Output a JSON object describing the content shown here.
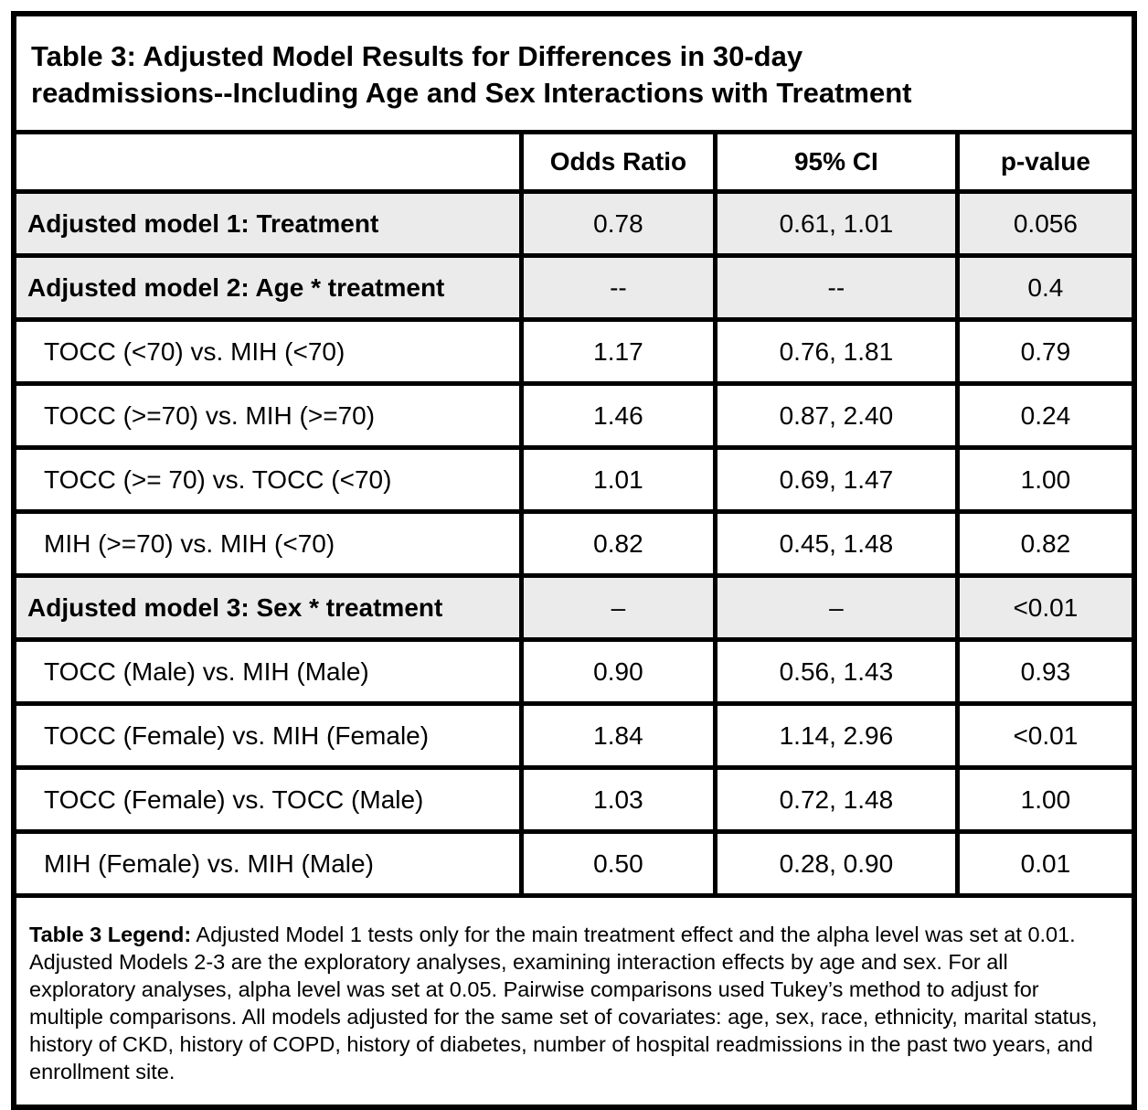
{
  "table": {
    "title": "Table 3: Adjusted Model Results for Differences in 30-day\nreadmissions--Including Age and Sex Interactions with Treatment",
    "columns": [
      "",
      "Odds Ratio",
      "95% CI",
      "p-value"
    ],
    "rows": [
      {
        "label": "Adjusted model 1: Treatment",
        "odds_ratio": "0.78",
        "ci": "0.61, 1.01",
        "p": "0.056",
        "type": "model"
      },
      {
        "label": "Adjusted model 2: Age * treatment",
        "odds_ratio": "--",
        "ci": "--",
        "p": "0.4",
        "type": "model"
      },
      {
        "label": "TOCC (<70) vs. MIH (<70)",
        "odds_ratio": "1.17",
        "ci": "0.76, 1.81",
        "p": "0.79",
        "type": "pairwise"
      },
      {
        "label": "TOCC (>=70) vs. MIH (>=70)",
        "odds_ratio": "1.46",
        "ci": "0.87, 2.40",
        "p": "0.24",
        "type": "pairwise"
      },
      {
        "label": "TOCC (>= 70) vs. TOCC (<70)",
        "odds_ratio": "1.01",
        "ci": "0.69, 1.47",
        "p": "1.00",
        "type": "pairwise"
      },
      {
        "label": "MIH (>=70) vs. MIH (<70)",
        "odds_ratio": "0.82",
        "ci": "0.45, 1.48",
        "p": "0.82",
        "type": "pairwise"
      },
      {
        "label": "Adjusted model 3: Sex * treatment",
        "odds_ratio": "–",
        "ci": "–",
        "p": "<0.01",
        "type": "model"
      },
      {
        "label": "TOCC (Male) vs. MIH (Male)",
        "odds_ratio": "0.90",
        "ci": "0.56, 1.43",
        "p": "0.93",
        "type": "pairwise"
      },
      {
        "label": "TOCC (Female) vs. MIH (Female)",
        "odds_ratio": "1.84",
        "ci": "1.14, 2.96",
        "p": "<0.01",
        "type": "pairwise"
      },
      {
        "label": "TOCC (Female) vs. TOCC (Male)",
        "odds_ratio": "1.03",
        "ci": "0.72, 1.48",
        "p": "1.00",
        "type": "pairwise"
      },
      {
        "label": "MIH (Female) vs. MIH (Male)",
        "odds_ratio": "0.50",
        "ci": "0.28, 0.90",
        "p": "0.01",
        "type": "pairwise"
      }
    ]
  },
  "legend": {
    "label": "Table 3 Legend:",
    "text": " Adjusted Model 1 tests only for the main treatment effect and the alpha level was set at 0.01. Adjusted Models 2-3 are the exploratory analyses, examining interaction effects by age and sex. For all exploratory analyses, alpha level was set at 0.05. Pairwise comparisons used Tukey’s method to adjust for multiple comparisons. All models  adjusted for the same set of covariates: age, sex, race, ethnicity, marital status, history of CKD, history of COPD, history of diabetes, number of hospital readmissions in the past two years, and enrollment site."
  },
  "colors": {
    "shaded_row_background": "#ebebeb",
    "border": "#000000",
    "page_background": "#ffffff",
    "text": "#000000"
  }
}
